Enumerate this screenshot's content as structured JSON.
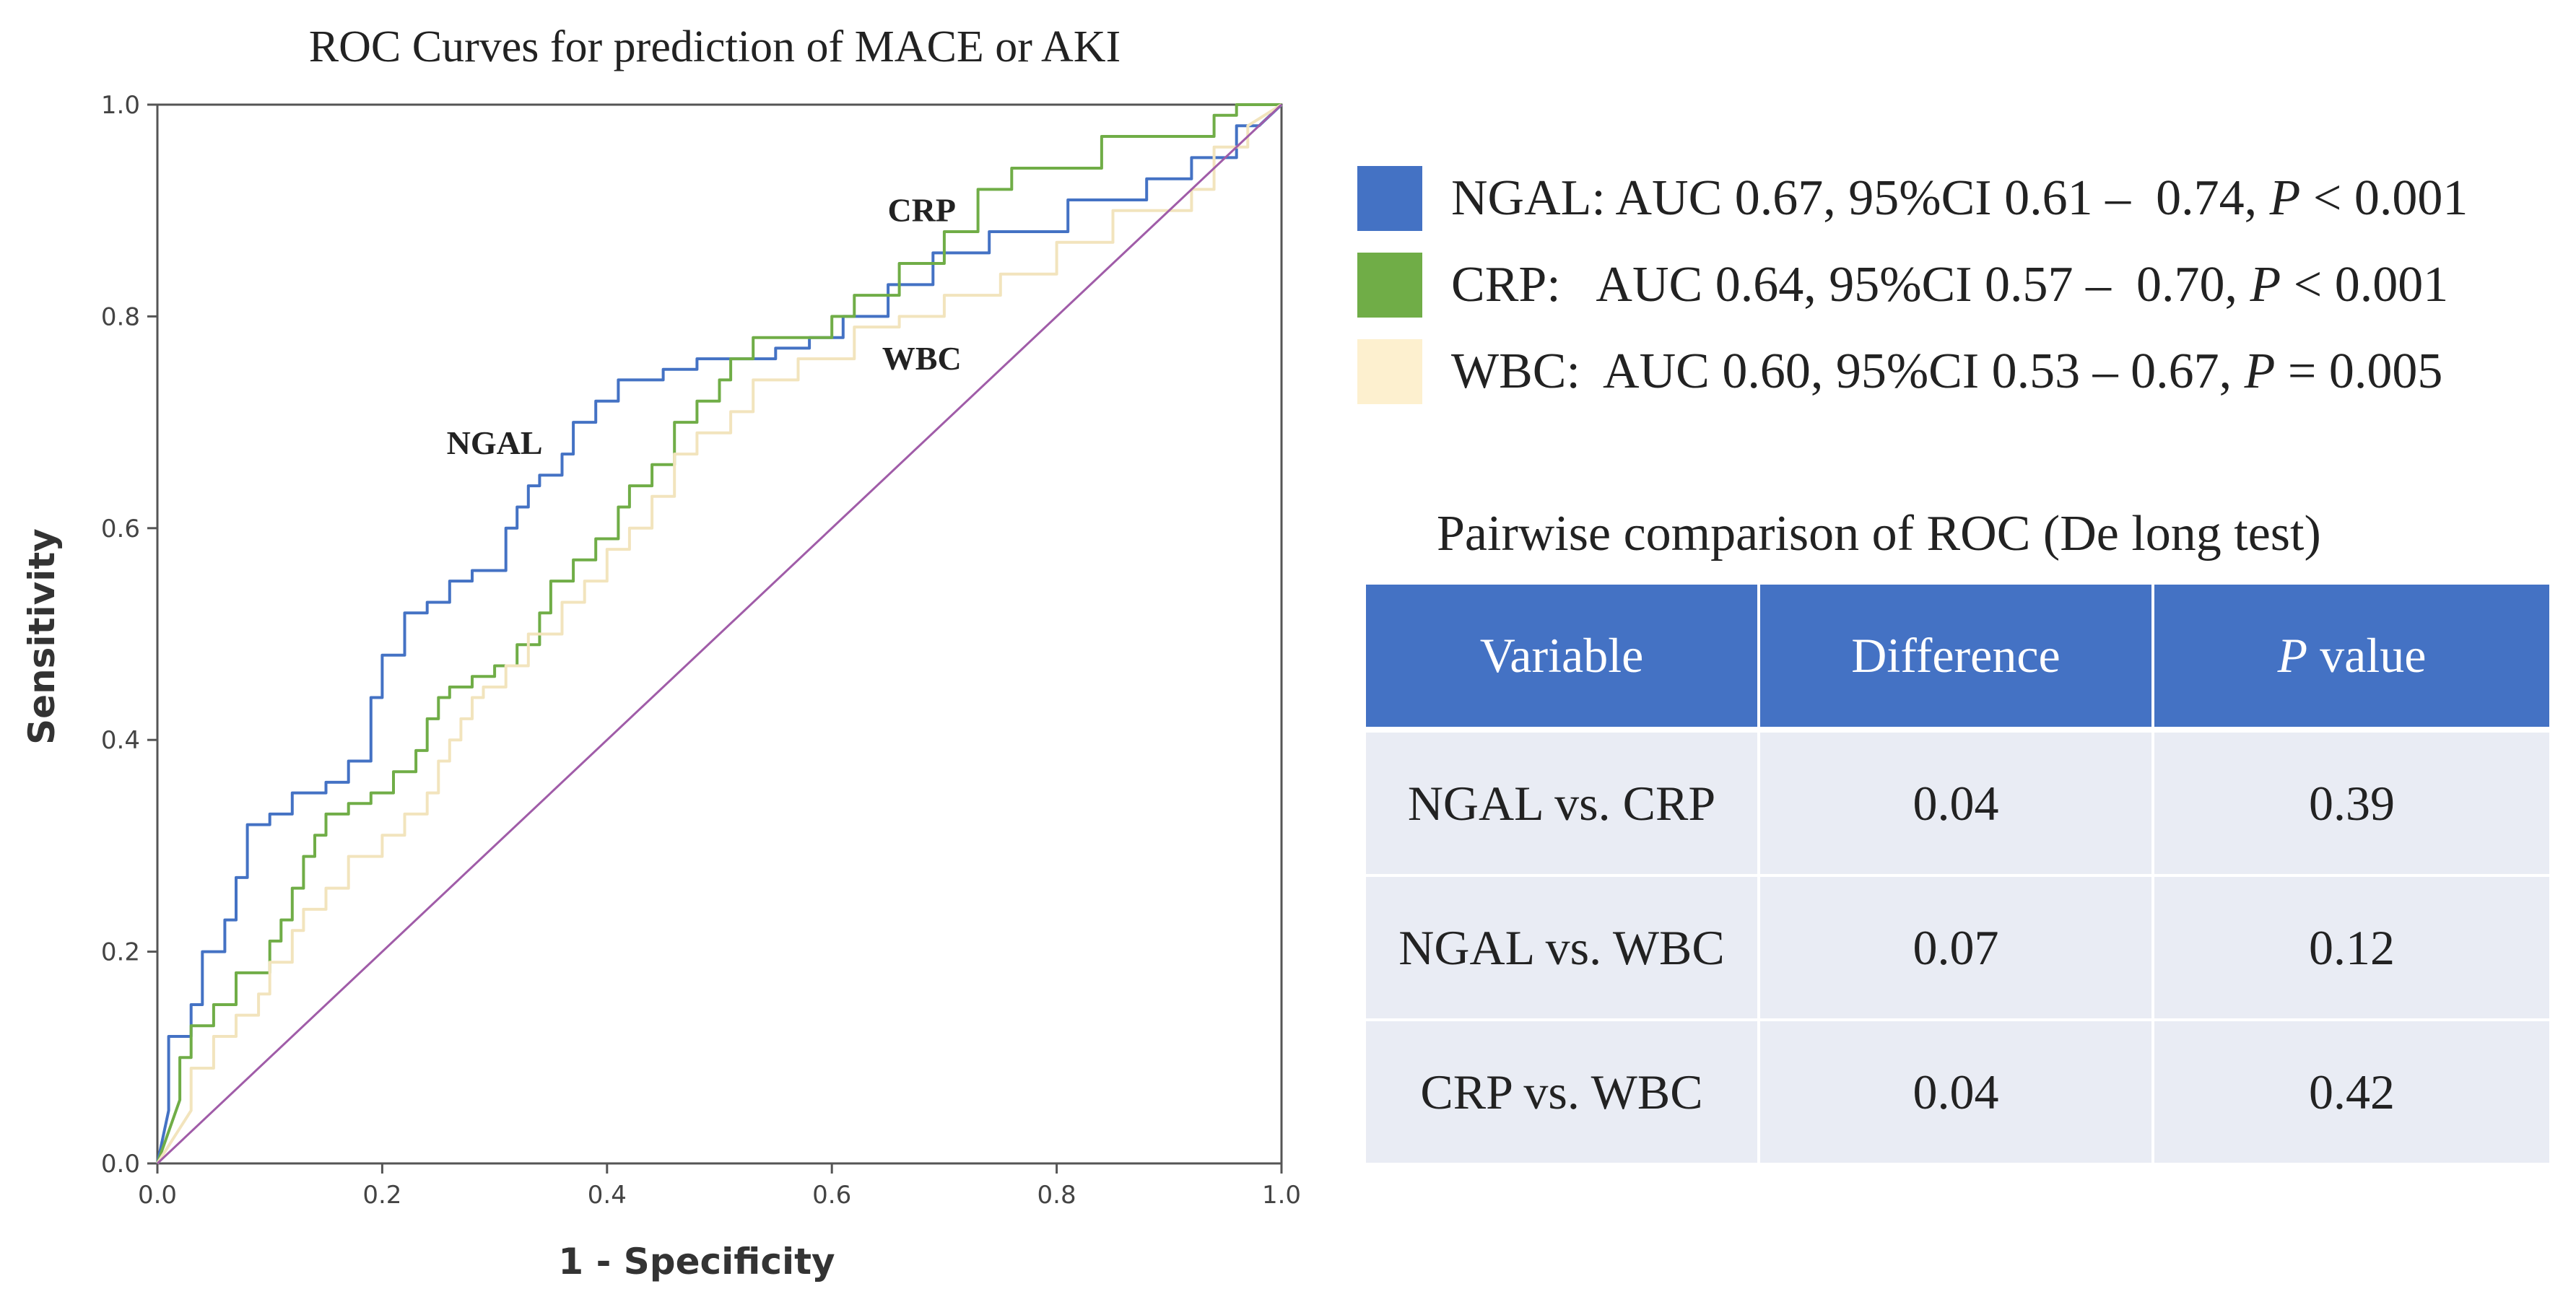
{
  "chart_data": {
    "type": "line",
    "title": "ROC Curves for prediction of MACE or AKI",
    "xlabel": "1 - Specificity",
    "ylabel": "Sensitivity",
    "xlim": [
      0.0,
      1.0
    ],
    "ylim": [
      0.0,
      1.0
    ],
    "x_ticks": [
      "0.0",
      "0.2",
      "0.4",
      "0.6",
      "0.8",
      "1.0"
    ],
    "y_ticks": [
      "0.0",
      "0.2",
      "0.4",
      "0.6",
      "0.8",
      "1.0"
    ],
    "grid": false,
    "legend_position": "right",
    "series": [
      {
        "name": "NGAL",
        "color": "#4472c4",
        "points": [
          [
            0,
            0
          ],
          [
            0.01,
            0.05
          ],
          [
            0.01,
            0.12
          ],
          [
            0.03,
            0.12
          ],
          [
            0.03,
            0.15
          ],
          [
            0.04,
            0.15
          ],
          [
            0.04,
            0.2
          ],
          [
            0.06,
            0.2
          ],
          [
            0.06,
            0.23
          ],
          [
            0.07,
            0.23
          ],
          [
            0.07,
            0.27
          ],
          [
            0.08,
            0.27
          ],
          [
            0.08,
            0.32
          ],
          [
            0.1,
            0.32
          ],
          [
            0.1,
            0.33
          ],
          [
            0.12,
            0.33
          ],
          [
            0.12,
            0.35
          ],
          [
            0.15,
            0.35
          ],
          [
            0.15,
            0.36
          ],
          [
            0.17,
            0.36
          ],
          [
            0.17,
            0.38
          ],
          [
            0.19,
            0.38
          ],
          [
            0.19,
            0.44
          ],
          [
            0.2,
            0.44
          ],
          [
            0.2,
            0.48
          ],
          [
            0.22,
            0.48
          ],
          [
            0.22,
            0.52
          ],
          [
            0.24,
            0.52
          ],
          [
            0.24,
            0.53
          ],
          [
            0.26,
            0.53
          ],
          [
            0.26,
            0.55
          ],
          [
            0.28,
            0.55
          ],
          [
            0.28,
            0.56
          ],
          [
            0.31,
            0.56
          ],
          [
            0.31,
            0.6
          ],
          [
            0.32,
            0.6
          ],
          [
            0.32,
            0.62
          ],
          [
            0.33,
            0.62
          ],
          [
            0.33,
            0.64
          ],
          [
            0.34,
            0.64
          ],
          [
            0.34,
            0.65
          ],
          [
            0.36,
            0.65
          ],
          [
            0.36,
            0.67
          ],
          [
            0.37,
            0.67
          ],
          [
            0.37,
            0.7
          ],
          [
            0.39,
            0.7
          ],
          [
            0.39,
            0.72
          ],
          [
            0.41,
            0.72
          ],
          [
            0.41,
            0.74
          ],
          [
            0.45,
            0.74
          ],
          [
            0.45,
            0.75
          ],
          [
            0.48,
            0.75
          ],
          [
            0.48,
            0.76
          ],
          [
            0.55,
            0.76
          ],
          [
            0.55,
            0.77
          ],
          [
            0.58,
            0.77
          ],
          [
            0.58,
            0.78
          ],
          [
            0.61,
            0.78
          ],
          [
            0.61,
            0.8
          ],
          [
            0.65,
            0.8
          ],
          [
            0.65,
            0.83
          ],
          [
            0.69,
            0.83
          ],
          [
            0.69,
            0.86
          ],
          [
            0.74,
            0.86
          ],
          [
            0.74,
            0.88
          ],
          [
            0.81,
            0.88
          ],
          [
            0.81,
            0.91
          ],
          [
            0.88,
            0.91
          ],
          [
            0.88,
            0.93
          ],
          [
            0.92,
            0.93
          ],
          [
            0.92,
            0.95
          ],
          [
            0.96,
            0.95
          ],
          [
            0.96,
            0.98
          ],
          [
            0.98,
            0.98
          ],
          [
            1.0,
            1.0
          ]
        ]
      },
      {
        "name": "CRP",
        "color": "#70ad47",
        "points": [
          [
            0,
            0
          ],
          [
            0.02,
            0.06
          ],
          [
            0.02,
            0.1
          ],
          [
            0.03,
            0.1
          ],
          [
            0.03,
            0.13
          ],
          [
            0.05,
            0.13
          ],
          [
            0.05,
            0.15
          ],
          [
            0.07,
            0.15
          ],
          [
            0.07,
            0.18
          ],
          [
            0.1,
            0.18
          ],
          [
            0.1,
            0.21
          ],
          [
            0.11,
            0.21
          ],
          [
            0.11,
            0.23
          ],
          [
            0.12,
            0.23
          ],
          [
            0.12,
            0.26
          ],
          [
            0.13,
            0.26
          ],
          [
            0.13,
            0.29
          ],
          [
            0.14,
            0.29
          ],
          [
            0.14,
            0.31
          ],
          [
            0.15,
            0.31
          ],
          [
            0.15,
            0.33
          ],
          [
            0.17,
            0.33
          ],
          [
            0.17,
            0.34
          ],
          [
            0.19,
            0.34
          ],
          [
            0.19,
            0.35
          ],
          [
            0.21,
            0.35
          ],
          [
            0.21,
            0.37
          ],
          [
            0.23,
            0.37
          ],
          [
            0.23,
            0.39
          ],
          [
            0.24,
            0.39
          ],
          [
            0.24,
            0.42
          ],
          [
            0.25,
            0.42
          ],
          [
            0.25,
            0.44
          ],
          [
            0.26,
            0.44
          ],
          [
            0.26,
            0.45
          ],
          [
            0.28,
            0.45
          ],
          [
            0.28,
            0.46
          ],
          [
            0.3,
            0.46
          ],
          [
            0.3,
            0.47
          ],
          [
            0.32,
            0.47
          ],
          [
            0.32,
            0.49
          ],
          [
            0.34,
            0.49
          ],
          [
            0.34,
            0.52
          ],
          [
            0.35,
            0.52
          ],
          [
            0.35,
            0.55
          ],
          [
            0.37,
            0.55
          ],
          [
            0.37,
            0.57
          ],
          [
            0.39,
            0.57
          ],
          [
            0.39,
            0.59
          ],
          [
            0.41,
            0.59
          ],
          [
            0.41,
            0.62
          ],
          [
            0.42,
            0.62
          ],
          [
            0.42,
            0.64
          ],
          [
            0.44,
            0.64
          ],
          [
            0.44,
            0.66
          ],
          [
            0.46,
            0.66
          ],
          [
            0.46,
            0.7
          ],
          [
            0.48,
            0.7
          ],
          [
            0.48,
            0.72
          ],
          [
            0.5,
            0.72
          ],
          [
            0.5,
            0.74
          ],
          [
            0.51,
            0.74
          ],
          [
            0.51,
            0.76
          ],
          [
            0.53,
            0.76
          ],
          [
            0.53,
            0.78
          ],
          [
            0.6,
            0.78
          ],
          [
            0.6,
            0.8
          ],
          [
            0.62,
            0.8
          ],
          [
            0.62,
            0.82
          ],
          [
            0.66,
            0.82
          ],
          [
            0.66,
            0.85
          ],
          [
            0.7,
            0.85
          ],
          [
            0.7,
            0.88
          ],
          [
            0.73,
            0.88
          ],
          [
            0.73,
            0.92
          ],
          [
            0.76,
            0.92
          ],
          [
            0.76,
            0.94
          ],
          [
            0.84,
            0.94
          ],
          [
            0.84,
            0.97
          ],
          [
            0.94,
            0.97
          ],
          [
            0.94,
            0.99
          ],
          [
            0.96,
            0.99
          ],
          [
            0.96,
            1.0
          ],
          [
            1.0,
            1.0
          ]
        ]
      },
      {
        "name": "WBC",
        "color": "#f2e4bd",
        "points": [
          [
            0,
            0
          ],
          [
            0.03,
            0.05
          ],
          [
            0.03,
            0.09
          ],
          [
            0.05,
            0.09
          ],
          [
            0.05,
            0.12
          ],
          [
            0.07,
            0.12
          ],
          [
            0.07,
            0.14
          ],
          [
            0.09,
            0.14
          ],
          [
            0.09,
            0.16
          ],
          [
            0.1,
            0.16
          ],
          [
            0.1,
            0.19
          ],
          [
            0.12,
            0.19
          ],
          [
            0.12,
            0.22
          ],
          [
            0.13,
            0.22
          ],
          [
            0.13,
            0.24
          ],
          [
            0.15,
            0.24
          ],
          [
            0.15,
            0.26
          ],
          [
            0.17,
            0.26
          ],
          [
            0.17,
            0.29
          ],
          [
            0.2,
            0.29
          ],
          [
            0.2,
            0.31
          ],
          [
            0.22,
            0.31
          ],
          [
            0.22,
            0.33
          ],
          [
            0.24,
            0.33
          ],
          [
            0.24,
            0.35
          ],
          [
            0.25,
            0.35
          ],
          [
            0.25,
            0.38
          ],
          [
            0.26,
            0.38
          ],
          [
            0.26,
            0.4
          ],
          [
            0.27,
            0.4
          ],
          [
            0.27,
            0.42
          ],
          [
            0.28,
            0.42
          ],
          [
            0.28,
            0.44
          ],
          [
            0.29,
            0.44
          ],
          [
            0.29,
            0.45
          ],
          [
            0.31,
            0.45
          ],
          [
            0.31,
            0.47
          ],
          [
            0.33,
            0.47
          ],
          [
            0.33,
            0.5
          ],
          [
            0.36,
            0.5
          ],
          [
            0.36,
            0.53
          ],
          [
            0.38,
            0.53
          ],
          [
            0.38,
            0.55
          ],
          [
            0.4,
            0.55
          ],
          [
            0.4,
            0.58
          ],
          [
            0.42,
            0.58
          ],
          [
            0.42,
            0.6
          ],
          [
            0.44,
            0.6
          ],
          [
            0.44,
            0.63
          ],
          [
            0.46,
            0.63
          ],
          [
            0.46,
            0.67
          ],
          [
            0.48,
            0.67
          ],
          [
            0.48,
            0.69
          ],
          [
            0.51,
            0.69
          ],
          [
            0.51,
            0.71
          ],
          [
            0.53,
            0.71
          ],
          [
            0.53,
            0.74
          ],
          [
            0.57,
            0.74
          ],
          [
            0.57,
            0.76
          ],
          [
            0.62,
            0.76
          ],
          [
            0.62,
            0.79
          ],
          [
            0.66,
            0.79
          ],
          [
            0.66,
            0.8
          ],
          [
            0.7,
            0.8
          ],
          [
            0.7,
            0.82
          ],
          [
            0.75,
            0.82
          ],
          [
            0.75,
            0.84
          ],
          [
            0.8,
            0.84
          ],
          [
            0.8,
            0.87
          ],
          [
            0.85,
            0.87
          ],
          [
            0.85,
            0.9
          ],
          [
            0.92,
            0.9
          ],
          [
            0.92,
            0.92
          ],
          [
            0.94,
            0.92
          ],
          [
            0.94,
            0.96
          ],
          [
            0.97,
            0.96
          ],
          [
            0.97,
            0.98
          ],
          [
            1.0,
            1.0
          ]
        ]
      },
      {
        "name": "",
        "color": "#a05ca8",
        "points": [
          [
            0,
            0
          ],
          [
            1,
            1
          ]
        ]
      }
    ],
    "annotations": [
      {
        "text": "NGAL",
        "x": 0.3,
        "y": 0.67
      },
      {
        "text": "CRP",
        "x": 0.68,
        "y": 0.89
      },
      {
        "text": "WBC",
        "x": 0.68,
        "y": 0.75
      }
    ]
  },
  "legend": [
    {
      "color": "#4472c4",
      "label": "NGAL: AUC 0.67, 95%CI 0.61 –  0.74, ",
      "p_symbol": "P",
      "p_text": " < 0.001"
    },
    {
      "color": "#70ad47",
      "label": "CRP:   AUC 0.64, 95%CI 0.57 –  0.70, ",
      "p_symbol": "P",
      "p_text": " < 0.001"
    },
    {
      "color": "#fdf0cf",
      "label": "WBC:  AUC 0.60, 95%CI 0.53 – 0.67, ",
      "p_symbol": "P",
      "p_text": " = 0.005"
    }
  ],
  "table": {
    "title": "Pairwise comparison of ROC (De long test)",
    "header": {
      "variable": "Variable",
      "difference": "Difference",
      "p_symbol": "P",
      "p_value": " value"
    },
    "header_color": "#4472c4",
    "row_color": "#e9ecf4",
    "rows": [
      {
        "variable": "NGAL vs. CRP",
        "difference": "0.04",
        "p": "0.39"
      },
      {
        "variable": "NGAL vs. WBC",
        "difference": "0.07",
        "p": "0.12"
      },
      {
        "variable": "CRP vs. WBC",
        "difference": "0.04",
        "p": "0.42"
      }
    ]
  }
}
